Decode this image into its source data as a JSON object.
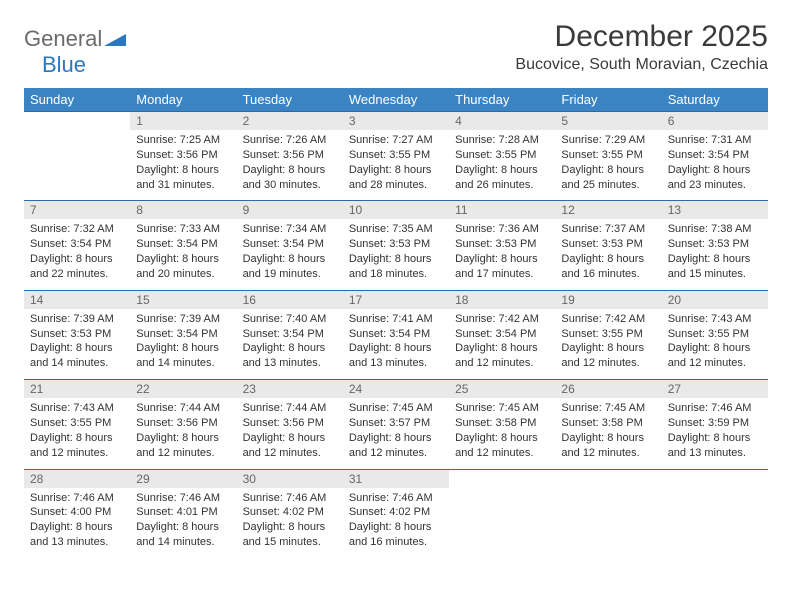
{
  "brand": {
    "part1": "General",
    "part2": "Blue"
  },
  "title": "December 2025",
  "location": "Bucovice, South Moravian, Czechia",
  "colors": {
    "header_bg": "#3b84c4",
    "header_text": "#ffffff",
    "daynum_bg": "#e9e9e9",
    "daynum_text": "#666666",
    "row_border": "#2b6ca8",
    "body_text": "#333333",
    "logo_gray": "#6b6b6b",
    "logo_blue": "#2b77c0"
  },
  "weekdays": [
    "Sunday",
    "Monday",
    "Tuesday",
    "Wednesday",
    "Thursday",
    "Friday",
    "Saturday"
  ],
  "weeks": [
    [
      null,
      {
        "n": "1",
        "sr": "7:25 AM",
        "ss": "3:56 PM",
        "dl": "8 hours and 31 minutes."
      },
      {
        "n": "2",
        "sr": "7:26 AM",
        "ss": "3:56 PM",
        "dl": "8 hours and 30 minutes."
      },
      {
        "n": "3",
        "sr": "7:27 AM",
        "ss": "3:55 PM",
        "dl": "8 hours and 28 minutes."
      },
      {
        "n": "4",
        "sr": "7:28 AM",
        "ss": "3:55 PM",
        "dl": "8 hours and 26 minutes."
      },
      {
        "n": "5",
        "sr": "7:29 AM",
        "ss": "3:55 PM",
        "dl": "8 hours and 25 minutes."
      },
      {
        "n": "6",
        "sr": "7:31 AM",
        "ss": "3:54 PM",
        "dl": "8 hours and 23 minutes."
      }
    ],
    [
      {
        "n": "7",
        "sr": "7:32 AM",
        "ss": "3:54 PM",
        "dl": "8 hours and 22 minutes."
      },
      {
        "n": "8",
        "sr": "7:33 AM",
        "ss": "3:54 PM",
        "dl": "8 hours and 20 minutes."
      },
      {
        "n": "9",
        "sr": "7:34 AM",
        "ss": "3:54 PM",
        "dl": "8 hours and 19 minutes."
      },
      {
        "n": "10",
        "sr": "7:35 AM",
        "ss": "3:53 PM",
        "dl": "8 hours and 18 minutes."
      },
      {
        "n": "11",
        "sr": "7:36 AM",
        "ss": "3:53 PM",
        "dl": "8 hours and 17 minutes."
      },
      {
        "n": "12",
        "sr": "7:37 AM",
        "ss": "3:53 PM",
        "dl": "8 hours and 16 minutes."
      },
      {
        "n": "13",
        "sr": "7:38 AM",
        "ss": "3:53 PM",
        "dl": "8 hours and 15 minutes."
      }
    ],
    [
      {
        "n": "14",
        "sr": "7:39 AM",
        "ss": "3:53 PM",
        "dl": "8 hours and 14 minutes."
      },
      {
        "n": "15",
        "sr": "7:39 AM",
        "ss": "3:54 PM",
        "dl": "8 hours and 14 minutes."
      },
      {
        "n": "16",
        "sr": "7:40 AM",
        "ss": "3:54 PM",
        "dl": "8 hours and 13 minutes."
      },
      {
        "n": "17",
        "sr": "7:41 AM",
        "ss": "3:54 PM",
        "dl": "8 hours and 13 minutes."
      },
      {
        "n": "18",
        "sr": "7:42 AM",
        "ss": "3:54 PM",
        "dl": "8 hours and 12 minutes."
      },
      {
        "n": "19",
        "sr": "7:42 AM",
        "ss": "3:55 PM",
        "dl": "8 hours and 12 minutes."
      },
      {
        "n": "20",
        "sr": "7:43 AM",
        "ss": "3:55 PM",
        "dl": "8 hours and 12 minutes."
      }
    ],
    [
      {
        "n": "21",
        "sr": "7:43 AM",
        "ss": "3:55 PM",
        "dl": "8 hours and 12 minutes."
      },
      {
        "n": "22",
        "sr": "7:44 AM",
        "ss": "3:56 PM",
        "dl": "8 hours and 12 minutes."
      },
      {
        "n": "23",
        "sr": "7:44 AM",
        "ss": "3:56 PM",
        "dl": "8 hours and 12 minutes."
      },
      {
        "n": "24",
        "sr": "7:45 AM",
        "ss": "3:57 PM",
        "dl": "8 hours and 12 minutes."
      },
      {
        "n": "25",
        "sr": "7:45 AM",
        "ss": "3:58 PM",
        "dl": "8 hours and 12 minutes."
      },
      {
        "n": "26",
        "sr": "7:45 AM",
        "ss": "3:58 PM",
        "dl": "8 hours and 12 minutes."
      },
      {
        "n": "27",
        "sr": "7:46 AM",
        "ss": "3:59 PM",
        "dl": "8 hours and 13 minutes."
      }
    ],
    [
      {
        "n": "28",
        "sr": "7:46 AM",
        "ss": "4:00 PM",
        "dl": "8 hours and 13 minutes."
      },
      {
        "n": "29",
        "sr": "7:46 AM",
        "ss": "4:01 PM",
        "dl": "8 hours and 14 minutes."
      },
      {
        "n": "30",
        "sr": "7:46 AM",
        "ss": "4:02 PM",
        "dl": "8 hours and 15 minutes."
      },
      {
        "n": "31",
        "sr": "7:46 AM",
        "ss": "4:02 PM",
        "dl": "8 hours and 16 minutes."
      },
      null,
      null,
      null
    ]
  ],
  "labels": {
    "sunrise": "Sunrise:",
    "sunset": "Sunset:",
    "daylight": "Daylight:"
  }
}
